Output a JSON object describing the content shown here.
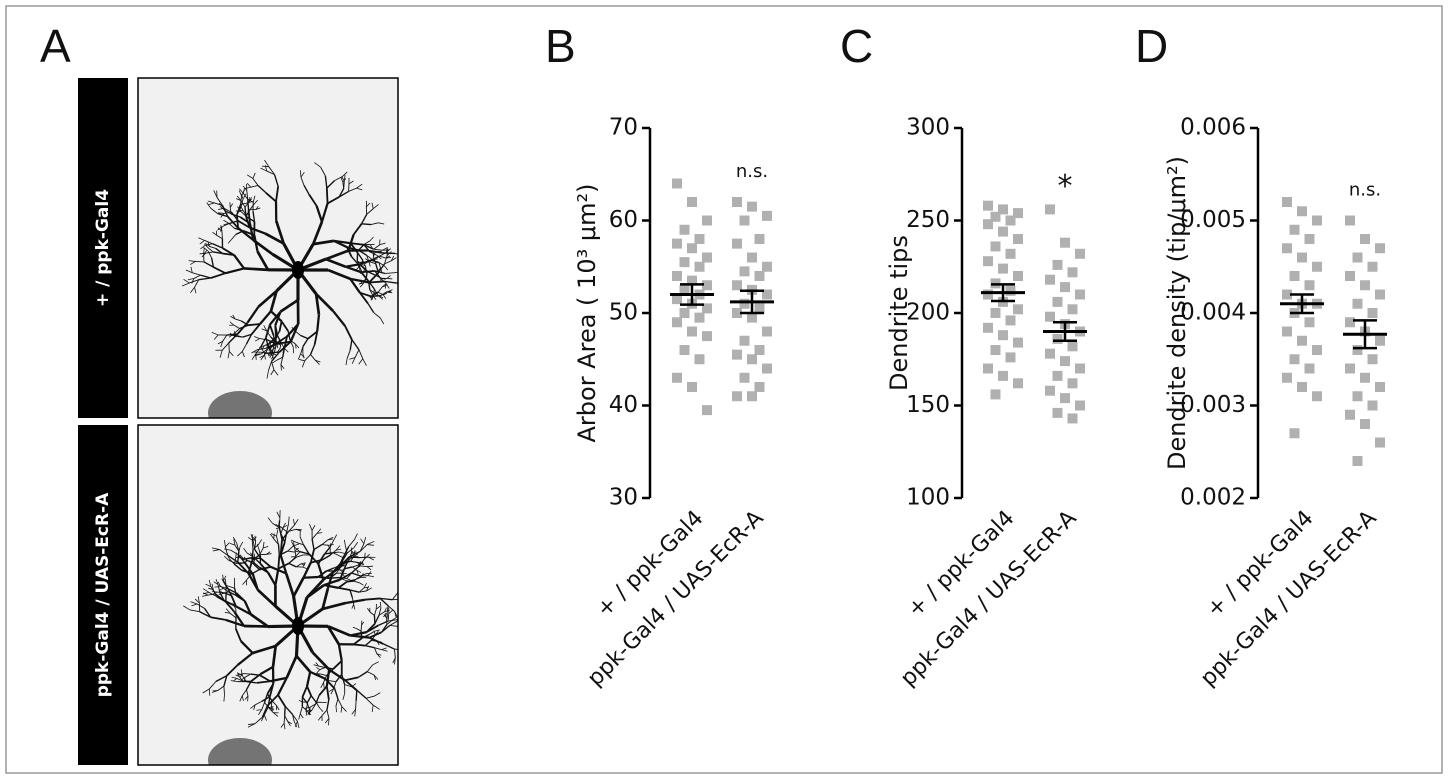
{
  "panel_labels": [
    "A",
    "B",
    "C",
    "D"
  ],
  "images": [
    {
      "label": "+ / ppk-Gal4"
    },
    {
      "label": "ppk-Gal4 / UAS-EcR-A"
    }
  ],
  "chart_data": [
    {
      "type": "strip",
      "ylabel": "Arbor Area ( 10³ μm²)",
      "categories": [
        "+ / ppk-Gal4",
        "ppk-Gal4 / UAS-EcR-A"
      ],
      "ylim": [
        30,
        70
      ],
      "yticks": [
        30,
        40,
        50,
        60,
        70
      ],
      "color": "#b0b0b0",
      "annotation": "n.s.",
      "groups": [
        {
          "values": [
            64,
            62,
            60,
            59,
            58,
            57.5,
            57,
            56,
            55.5,
            55,
            54,
            53.5,
            53,
            52.5,
            52,
            51.5,
            51,
            50.5,
            50,
            49.5,
            49,
            48,
            47.5,
            46,
            45,
            43,
            42,
            39.5
          ],
          "mean": 52,
          "sem": 1.1
        },
        {
          "values": [
            62,
            61.5,
            60.5,
            60,
            58,
            57.5,
            56,
            55,
            54.5,
            54,
            53,
            52.5,
            52,
            51,
            50.5,
            50,
            49.5,
            48,
            47,
            46,
            45.5,
            45,
            44,
            43,
            42,
            41,
            41
          ],
          "mean": 51.2,
          "sem": 1.2
        }
      ]
    },
    {
      "type": "strip",
      "ylabel": "Dendrite tips",
      "categories": [
        "+ / ppk-Gal4",
        "ppk-Gal4 / UAS-EcR-A"
      ],
      "ylim": [
        100,
        300
      ],
      "yticks": [
        100,
        150,
        200,
        250,
        300
      ],
      "color": "#b0b0b0",
      "annotation": "*",
      "groups": [
        {
          "values": [
            258,
            256,
            254,
            252,
            250,
            248,
            244,
            240,
            236,
            232,
            228,
            224,
            220,
            216,
            212,
            210,
            206,
            202,
            200,
            196,
            192,
            188,
            184,
            180,
            176,
            170,
            166,
            162,
            156
          ],
          "mean": 211,
          "sem": 4.5
        },
        {
          "values": [
            256,
            238,
            232,
            226,
            222,
            218,
            214,
            210,
            206,
            202,
            198,
            194,
            190,
            186,
            182,
            178,
            174,
            170,
            166,
            162,
            158,
            154,
            150,
            146,
            143
          ],
          "mean": 190,
          "sem": 5
        }
      ]
    },
    {
      "type": "strip",
      "ylabel": "Dendrite density (tip/μm²)",
      "categories": [
        "+ / ppk-Gal4",
        "ppk-Gal4 / UAS-EcR-A"
      ],
      "ylim": [
        0.002,
        0.006
      ],
      "yticks": [
        0.002,
        0.003,
        0.004,
        0.005,
        0.006
      ],
      "color": "#b0b0b0",
      "annotation": "n.s.",
      "groups": [
        {
          "values": [
            0.0052,
            0.0051,
            0.005,
            0.0049,
            0.0048,
            0.0047,
            0.0046,
            0.0045,
            0.0044,
            0.0043,
            0.0042,
            0.0041,
            0.0041,
            0.004,
            0.0039,
            0.0038,
            0.0037,
            0.0036,
            0.0035,
            0.0034,
            0.0033,
            0.0032,
            0.0031,
            0.0027
          ],
          "mean": 0.0041,
          "sem": 0.0001
        },
        {
          "values": [
            0.005,
            0.0048,
            0.0047,
            0.0046,
            0.0045,
            0.0044,
            0.0043,
            0.0042,
            0.0041,
            0.004,
            0.0039,
            0.0038,
            0.0037,
            0.0036,
            0.0035,
            0.0034,
            0.0033,
            0.0032,
            0.0031,
            0.003,
            0.0029,
            0.0028,
            0.0026,
            0.0024
          ],
          "mean": 0.00377,
          "sem": 0.00015
        }
      ]
    }
  ]
}
